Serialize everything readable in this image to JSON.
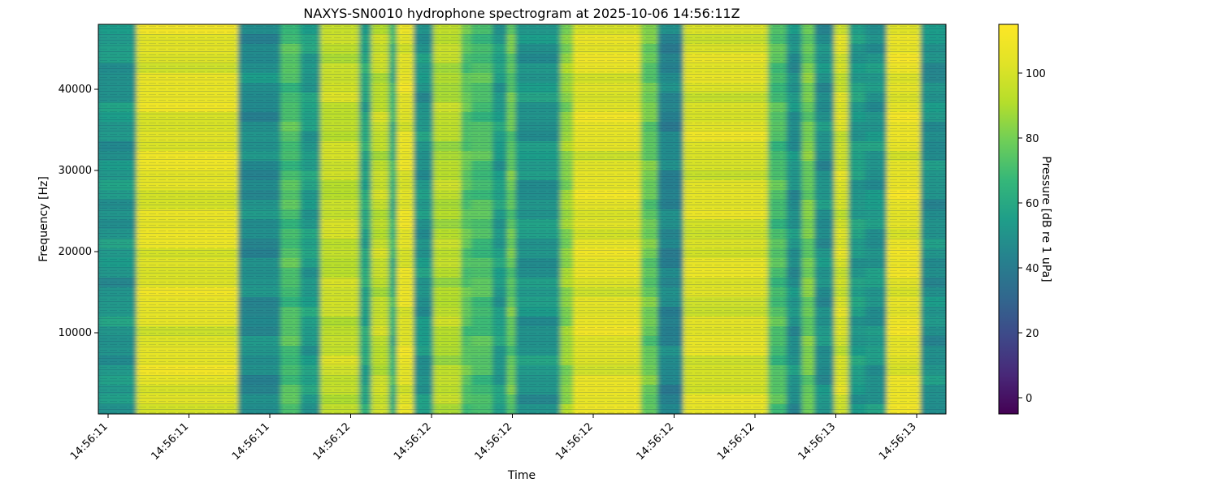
{
  "chart_data": {
    "type": "heatmap",
    "title": "NAXYS-SN0010 hydrophone spectrogram at 2025-10-06 14:56:11Z",
    "xlabel": "Time",
    "ylabel": "Frequency [Hz]",
    "colorbar_label": "Pressure [dB re 1 uPa]",
    "colormap": "viridis",
    "color_range": [
      -5,
      115
    ],
    "ylim": [
      0,
      48000
    ],
    "y_ticks": [
      10000,
      20000,
      30000,
      40000
    ],
    "y_tick_labels": [
      "10000",
      "20000",
      "30000",
      "40000"
    ],
    "x_tick_labels": [
      "14:56:11",
      "14:56:11",
      "14:56:11",
      "14:56:12",
      "14:56:12",
      "14:56:12",
      "14:56:12",
      "14:56:12",
      "14:56:12",
      "14:56:13",
      "14:56:13"
    ],
    "colorbar_ticks": [
      0,
      20,
      40,
      60,
      80,
      100
    ],
    "colorbar_tick_labels": [
      "0",
      "20",
      "40",
      "60",
      "80",
      "100"
    ],
    "segments": [
      {
        "t_start": 0.0,
        "t_end": 0.045,
        "level_db": 52
      },
      {
        "t_start": 0.045,
        "t_end": 0.165,
        "level_db": 104
      },
      {
        "t_start": 0.165,
        "t_end": 0.215,
        "level_db": 48
      },
      {
        "t_start": 0.215,
        "t_end": 0.238,
        "level_db": 72
      },
      {
        "t_start": 0.238,
        "t_end": 0.262,
        "level_db": 55
      },
      {
        "t_start": 0.262,
        "t_end": 0.308,
        "level_db": 96
      },
      {
        "t_start": 0.308,
        "t_end": 0.322,
        "level_db": 60
      },
      {
        "t_start": 0.322,
        "t_end": 0.343,
        "level_db": 95
      },
      {
        "t_start": 0.343,
        "t_end": 0.352,
        "level_db": 65
      },
      {
        "t_start": 0.352,
        "t_end": 0.372,
        "level_db": 105
      },
      {
        "t_start": 0.372,
        "t_end": 0.395,
        "level_db": 52
      },
      {
        "t_start": 0.395,
        "t_end": 0.428,
        "level_db": 92
      },
      {
        "t_start": 0.428,
        "t_end": 0.44,
        "level_db": 75
      },
      {
        "t_start": 0.44,
        "t_end": 0.465,
        "level_db": 72
      },
      {
        "t_start": 0.465,
        "t_end": 0.482,
        "level_db": 55
      },
      {
        "t_start": 0.482,
        "t_end": 0.492,
        "level_db": 78
      },
      {
        "t_start": 0.492,
        "t_end": 0.545,
        "level_db": 52
      },
      {
        "t_start": 0.545,
        "t_end": 0.56,
        "level_db": 85
      },
      {
        "t_start": 0.56,
        "t_end": 0.64,
        "level_db": 104
      },
      {
        "t_start": 0.64,
        "t_end": 0.66,
        "level_db": 78
      },
      {
        "t_start": 0.66,
        "t_end": 0.69,
        "level_db": 45
      },
      {
        "t_start": 0.69,
        "t_end": 0.79,
        "level_db": 102
      },
      {
        "t_start": 0.79,
        "t_end": 0.812,
        "level_db": 72
      },
      {
        "t_start": 0.812,
        "t_end": 0.83,
        "level_db": 50
      },
      {
        "t_start": 0.83,
        "t_end": 0.845,
        "level_db": 80
      },
      {
        "t_start": 0.845,
        "t_end": 0.868,
        "level_db": 50
      },
      {
        "t_start": 0.868,
        "t_end": 0.885,
        "level_db": 100
      },
      {
        "t_start": 0.885,
        "t_end": 0.905,
        "level_db": 55
      },
      {
        "t_start": 0.905,
        "t_end": 0.93,
        "level_db": 52
      },
      {
        "t_start": 0.93,
        "t_end": 0.97,
        "level_db": 106
      },
      {
        "t_start": 0.97,
        "t_end": 1.0,
        "level_db": 50
      }
    ]
  }
}
